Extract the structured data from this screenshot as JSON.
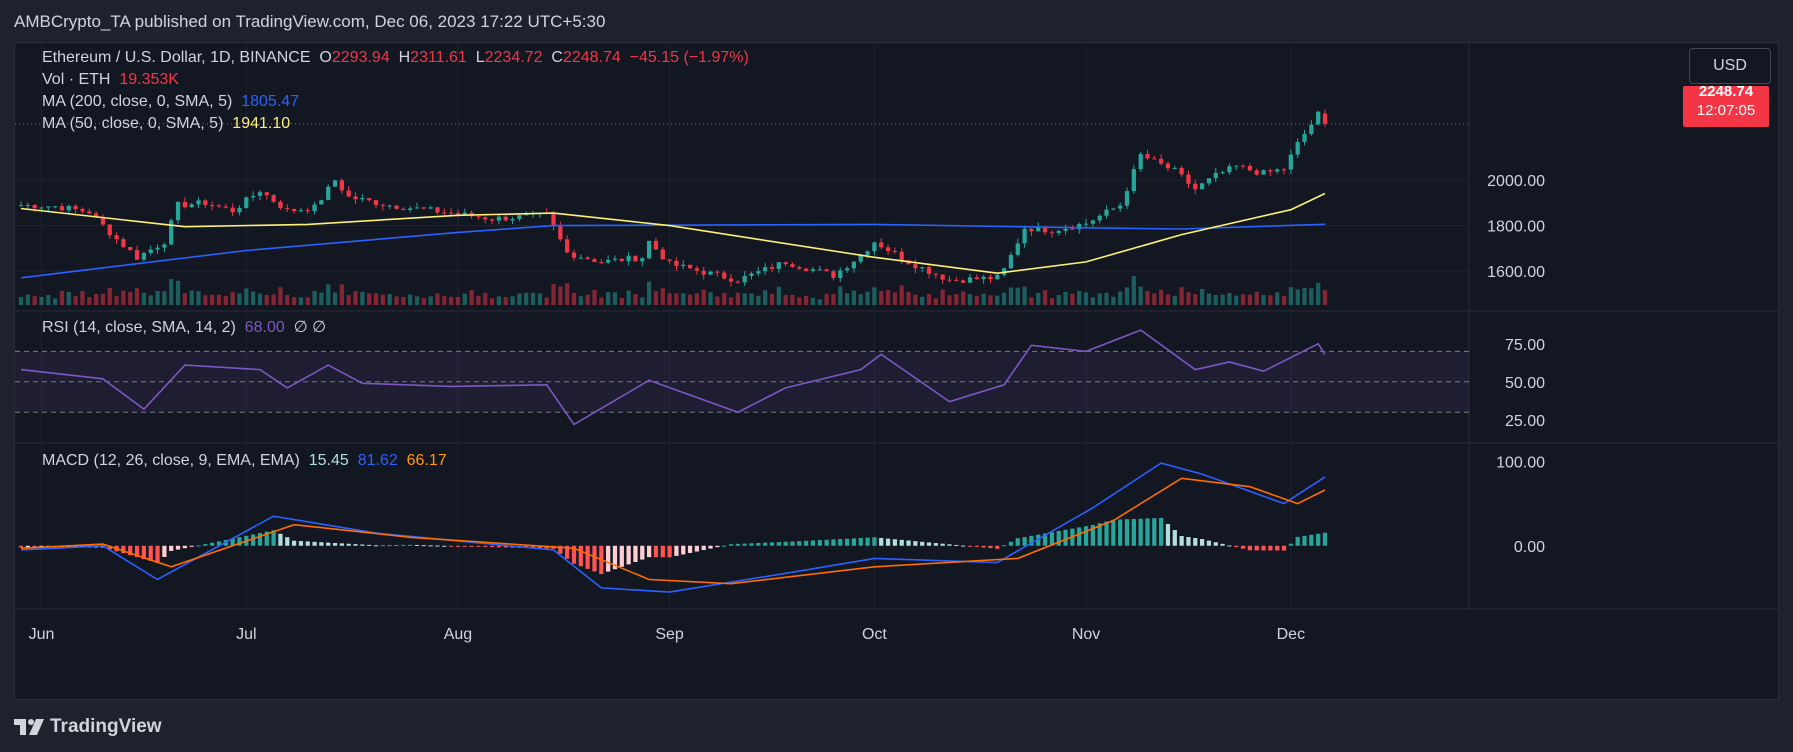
{
  "header": {
    "published": "AMBCrypto_TA published on TradingView.com, Dec 06, 2023 17:22 UTC+5:30"
  },
  "footer": {
    "brand": "TradingView"
  },
  "legend": {
    "symbol": "Ethereum / U.S. Dollar, 1D, BINANCE",
    "o_label": "O",
    "o_value": "2293.94",
    "h_label": "H",
    "h_value": "2311.61",
    "l_label": "L",
    "l_value": "2234.72",
    "c_label": "C",
    "c_value": "2248.74",
    "change": "−45.15 (−1.97%)",
    "vol_label": "Vol · ETH",
    "vol_value": "19.353K",
    "ma200_label": "MA (200, close, 0, SMA, 5)",
    "ma200_value": "1805.47",
    "ma50_label": "MA (50, close, 0, SMA, 5)",
    "ma50_value": "1941.10",
    "rsi_label": "RSI (14, close, SMA, 14, 2)",
    "rsi_value": "68.00",
    "rsi_extra": "∅ ∅",
    "macd_label": "MACD (12, 26, close, 9, EMA, EMA)",
    "macd_hist": "15.45",
    "macd_line": "81.62",
    "macd_signal": "66.17"
  },
  "price_scale": {
    "currency": "USD",
    "last_price": "2248.74",
    "countdown": "12:07:05"
  },
  "colors": {
    "up": "#26a69a",
    "down": "#f23645",
    "ma200": "#2962ff",
    "ma50": "#fff176",
    "rsi": "#7e57c2",
    "macd": "#2962ff",
    "signal": "#ff6d00",
    "grid": "#2a2e39",
    "text": "#d1d4dc"
  },
  "chart_data": [
    {
      "type": "candlestick",
      "title": "Ethereum / U.S. Dollar, 1D, BINANCE",
      "x_start": "2023-05-29",
      "x_end": "2023-12-06",
      "x_tick_labels": [
        "Jun",
        "Jul",
        "Aug",
        "Sep",
        "Oct",
        "Nov",
        "Dec"
      ],
      "x_tick_dates": [
        "2023-06-01",
        "2023-07-01",
        "2023-08-01",
        "2023-09-01",
        "2023-10-01",
        "2023-11-01",
        "2023-12-01"
      ],
      "y_ticks": [
        1600,
        1800,
        2000
      ],
      "y_tick_labels": [
        "1600.00",
        "1800.00",
        "2000.00"
      ],
      "ylim": [
        1450,
        2340
      ],
      "close_anchors": [
        [
          "2023-05-29",
          1890
        ],
        [
          "2023-06-03",
          1885
        ],
        [
          "2023-06-08",
          1860
        ],
        [
          "2023-06-12",
          1740
        ],
        [
          "2023-06-15",
          1660
        ],
        [
          "2023-06-19",
          1730
        ],
        [
          "2023-06-21",
          1890
        ],
        [
          "2023-06-25",
          1900
        ],
        [
          "2023-06-29",
          1865
        ],
        [
          "2023-07-03",
          1955
        ],
        [
          "2023-07-07",
          1865
        ],
        [
          "2023-07-11",
          1880
        ],
        [
          "2023-07-14",
          2000
        ],
        [
          "2023-07-16",
          1925
        ],
        [
          "2023-07-22",
          1890
        ],
        [
          "2023-07-31",
          1855
        ],
        [
          "2023-08-06",
          1830
        ],
        [
          "2023-08-14",
          1845
        ],
        [
          "2023-08-17",
          1680
        ],
        [
          "2023-08-22",
          1640
        ],
        [
          "2023-08-28",
          1660
        ],
        [
          "2023-08-29",
          1730
        ],
        [
          "2023-09-01",
          1630
        ],
        [
          "2023-09-11",
          1560
        ],
        [
          "2023-09-18",
          1640
        ],
        [
          "2023-09-25",
          1580
        ],
        [
          "2023-09-29",
          1670
        ],
        [
          "2023-10-01",
          1730
        ],
        [
          "2023-10-06",
          1640
        ],
        [
          "2023-10-12",
          1560
        ],
        [
          "2023-10-19",
          1570
        ],
        [
          "2023-10-20",
          1605
        ],
        [
          "2023-10-23",
          1790
        ],
        [
          "2023-10-27",
          1780
        ],
        [
          "2023-11-01",
          1810
        ],
        [
          "2023-11-06",
          1890
        ],
        [
          "2023-11-09",
          2110
        ],
        [
          "2023-11-14",
          2040
        ],
        [
          "2023-11-17",
          1960
        ],
        [
          "2023-11-20",
          2020
        ],
        [
          "2023-11-23",
          2060
        ],
        [
          "2023-11-27",
          2030
        ],
        [
          "2023-11-30",
          2050
        ],
        [
          "2023-12-02",
          2160
        ],
        [
          "2023-12-05",
          2290
        ],
        [
          "2023-12-06",
          2248.74
        ]
      ],
      "last_candle": {
        "date": "2023-12-06",
        "open": 2293.94,
        "high": 2311.61,
        "low": 2234.72,
        "close": 2248.74
      },
      "volume_last": "19.353K",
      "ma200": [
        [
          "2023-05-29",
          1570
        ],
        [
          "2023-07-01",
          1690
        ],
        [
          "2023-08-01",
          1770
        ],
        [
          "2023-08-15",
          1800
        ],
        [
          "2023-10-01",
          1805
        ],
        [
          "2023-11-01",
          1790
        ],
        [
          "2023-11-15",
          1785
        ],
        [
          "2023-12-06",
          1805.47
        ]
      ],
      "ma50": [
        [
          "2023-05-29",
          1875
        ],
        [
          "2023-06-22",
          1795
        ],
        [
          "2023-07-10",
          1805
        ],
        [
          "2023-08-01",
          1845
        ],
        [
          "2023-08-15",
          1855
        ],
        [
          "2023-09-01",
          1800
        ],
        [
          "2023-10-01",
          1660
        ],
        [
          "2023-10-19",
          1590
        ],
        [
          "2023-11-01",
          1640
        ],
        [
          "2023-11-15",
          1760
        ],
        [
          "2023-12-01",
          1870
        ],
        [
          "2023-12-06",
          1941.1
        ]
      ]
    },
    {
      "type": "line",
      "title": "RSI (14, close, SMA, 14, 2)",
      "y_ticks": [
        25,
        50,
        75
      ],
      "y_tick_labels": [
        "25.00",
        "50.00",
        "75.00"
      ],
      "band": [
        30,
        70
      ],
      "midline": 50,
      "ylim": [
        15,
        90
      ],
      "rsi": [
        [
          "2023-05-29",
          58
        ],
        [
          "2023-06-10",
          52
        ],
        [
          "2023-06-16",
          32
        ],
        [
          "2023-06-22",
          61
        ],
        [
          "2023-07-03",
          58
        ],
        [
          "2023-07-07",
          46
        ],
        [
          "2023-07-13",
          61
        ],
        [
          "2023-07-18",
          49
        ],
        [
          "2023-07-31",
          47
        ],
        [
          "2023-08-14",
          48
        ],
        [
          "2023-08-18",
          22
        ],
        [
          "2023-08-29",
          51
        ],
        [
          "2023-09-11",
          30
        ],
        [
          "2023-09-18",
          46
        ],
        [
          "2023-09-29",
          58
        ],
        [
          "2023-10-02",
          68
        ],
        [
          "2023-10-12",
          37
        ],
        [
          "2023-10-20",
          48
        ],
        [
          "2023-10-24",
          74
        ],
        [
          "2023-11-01",
          70
        ],
        [
          "2023-11-09",
          84
        ],
        [
          "2023-11-17",
          58
        ],
        [
          "2023-11-22",
          63
        ],
        [
          "2023-11-27",
          57
        ],
        [
          "2023-12-05",
          75
        ],
        [
          "2023-12-06",
          68
        ]
      ]
    },
    {
      "type": "line",
      "title": "MACD (12, 26, close, 9, EMA, EMA)",
      "y_ticks": [
        0,
        100
      ],
      "y_tick_labels": [
        "0.00",
        "100.00"
      ],
      "ylim": [
        -75,
        110
      ],
      "macd": [
        [
          "2023-05-29",
          -5
        ],
        [
          "2023-06-10",
          0
        ],
        [
          "2023-06-18",
          -40
        ],
        [
          "2023-07-05",
          35
        ],
        [
          "2023-07-20",
          15
        ],
        [
          "2023-08-15",
          -5
        ],
        [
          "2023-08-22",
          -50
        ],
        [
          "2023-09-01",
          -55
        ],
        [
          "2023-09-20",
          -30
        ],
        [
          "2023-10-01",
          -15
        ],
        [
          "2023-10-19",
          -20
        ],
        [
          "2023-11-02",
          45
        ],
        [
          "2023-11-12",
          98
        ],
        [
          "2023-11-18",
          85
        ],
        [
          "2023-11-30",
          50
        ],
        [
          "2023-12-06",
          81.62
        ]
      ],
      "signal": [
        [
          "2023-05-29",
          -3
        ],
        [
          "2023-06-10",
          2
        ],
        [
          "2023-06-20",
          -25
        ],
        [
          "2023-07-08",
          25
        ],
        [
          "2023-07-25",
          10
        ],
        [
          "2023-08-18",
          -3
        ],
        [
          "2023-08-29",
          -40
        ],
        [
          "2023-09-10",
          -45
        ],
        [
          "2023-10-01",
          -25
        ],
        [
          "2023-10-22",
          -15
        ],
        [
          "2023-11-05",
          30
        ],
        [
          "2023-11-15",
          80
        ],
        [
          "2023-11-25",
          70
        ],
        [
          "2023-12-02",
          50
        ],
        [
          "2023-12-06",
          66.17
        ]
      ],
      "histogram_last": 15.45
    }
  ]
}
